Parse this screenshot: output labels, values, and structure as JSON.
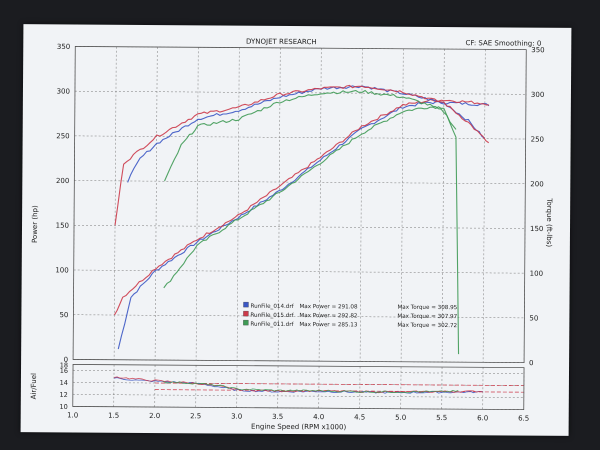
{
  "header": {
    "center": "DYNOJET RESEARCH",
    "right": "CF: SAE  Smoothing: 0"
  },
  "chart_data": {
    "type": "line",
    "xlabel": "Engine Speed (RPM x1000)",
    "xlim": [
      1.0,
      6.5
    ],
    "x_ticks": [
      "1.0",
      "1.5",
      "2.0",
      "2.5",
      "3.0",
      "3.5",
      "4.0",
      "4.5",
      "5.0",
      "5.5",
      "6.0",
      "6.5"
    ],
    "main_panel": {
      "ylabel_left": "Power (hp)",
      "ylabel_right": "Torque (ft-lbs)",
      "ylim": [
        0,
        350
      ],
      "y_ticks": [
        "0",
        "50",
        "100",
        "150",
        "200",
        "250",
        "300",
        "350"
      ],
      "grid": true
    },
    "af_panel": {
      "ylabel": "Air/Fuel",
      "ylim": [
        10,
        17
      ],
      "y_ticks": [
        "10",
        "12",
        "14",
        "16",
        "18"
      ],
      "grid": true
    },
    "legend": {
      "placement": "lower-center",
      "entries": [
        {
          "file": "RunFile_014.drf",
          "power_label": "Max Power = 291.08",
          "torque_label": "Max Torque = 308.95",
          "color": "#3b57c4"
        },
        {
          "file": "RunFile_015.drf",
          "power_label": "Max Power = 292.82",
          "torque_label": "Max Torque = 307.97",
          "color": "#cc3a4a"
        },
        {
          "file": "RunFile_011.drf",
          "power_label": "Max Power = 285.13",
          "torque_label": "Max Torque = 302.72",
          "color": "#3f9a55"
        }
      ]
    },
    "series": [
      {
        "color": "#3b57c4",
        "kind": "power",
        "x": [
          1.55,
          1.7,
          2.0,
          2.5,
          3.0,
          3.5,
          4.0,
          4.5,
          5.0,
          5.3,
          5.5,
          5.8,
          6.05
        ],
        "y": [
          12,
          70,
          100,
          132,
          160,
          190,
          225,
          260,
          285,
          290,
          290,
          289,
          288
        ]
      },
      {
        "color": "#cc3a4a",
        "kind": "power",
        "x": [
          1.5,
          1.6,
          2.0,
          2.5,
          3.0,
          3.5,
          4.0,
          4.5,
          5.0,
          5.3,
          5.5,
          5.8,
          6.05
        ],
        "y": [
          50,
          70,
          103,
          135,
          162,
          195,
          228,
          263,
          287,
          292,
          293,
          291,
          289
        ]
      },
      {
        "color": "#3f9a55",
        "kind": "power",
        "x": [
          2.1,
          2.5,
          3.0,
          3.5,
          4.0,
          4.5,
          5.0,
          5.3,
          5.5,
          5.65,
          5.7
        ],
        "y": [
          80,
          128,
          158,
          188,
          222,
          255,
          280,
          285,
          285,
          250,
          10
        ]
      },
      {
        "color": "#3b57c4",
        "kind": "torque",
        "x": [
          1.65,
          1.8,
          2.0,
          2.5,
          3.0,
          3.5,
          4.0,
          4.5,
          5.0,
          5.5,
          5.8,
          6.0
        ],
        "y": [
          200,
          225,
          242,
          270,
          280,
          295,
          305,
          308,
          300,
          290,
          270,
          250
        ]
      },
      {
        "color": "#cc3a4a",
        "kind": "torque",
        "x": [
          1.5,
          1.6,
          2.0,
          2.5,
          3.0,
          3.5,
          4.0,
          4.5,
          5.0,
          5.5,
          5.8,
          6.05
        ],
        "y": [
          150,
          220,
          250,
          275,
          283,
          298,
          305,
          308,
          302,
          290,
          268,
          245
        ]
      },
      {
        "color": "#3f9a55",
        "kind": "torque",
        "x": [
          2.1,
          2.3,
          2.5,
          3.0,
          3.5,
          4.0,
          4.5,
          5.0,
          5.3,
          5.5,
          5.65
        ],
        "y": [
          200,
          240,
          262,
          270,
          290,
          300,
          302,
          296,
          288,
          280,
          260
        ]
      },
      {
        "color": "#3b57c4",
        "kind": "af",
        "x": [
          1.5,
          1.8,
          2.0,
          2.5,
          2.8,
          3.0,
          3.5,
          4.0,
          4.5,
          5.0,
          5.5,
          6.0
        ],
        "y": [
          14.8,
          14.4,
          14.3,
          14.0,
          13.4,
          12.9,
          12.7,
          12.8,
          12.7,
          12.7,
          12.8,
          12.9
        ]
      },
      {
        "color": "#cc3a4a",
        "kind": "af",
        "x": [
          1.5,
          1.8,
          2.0,
          2.5,
          2.8,
          3.0,
          3.5,
          4.0,
          4.5,
          5.0,
          5.5,
          6.0
        ],
        "y": [
          15.0,
          14.6,
          14.4,
          14.0,
          13.5,
          13.0,
          12.8,
          12.9,
          12.8,
          12.8,
          12.9,
          13.0
        ]
      },
      {
        "color": "#3f9a55",
        "kind": "af",
        "x": [
          2.1,
          2.5,
          2.8,
          3.0,
          3.5,
          4.0,
          4.5,
          5.0,
          5.5,
          5.7
        ],
        "y": [
          14.2,
          14.0,
          13.6,
          13.1,
          12.9,
          12.9,
          12.8,
          12.8,
          12.9,
          13.0
        ]
      }
    ],
    "reference_lines": [
      {
        "kind": "af",
        "y": 14.0,
        "color": "#cc3a4a",
        "dashed": true
      },
      {
        "kind": "af",
        "y": 12.9,
        "color": "#cc3a4a",
        "dashed": true
      }
    ]
  }
}
